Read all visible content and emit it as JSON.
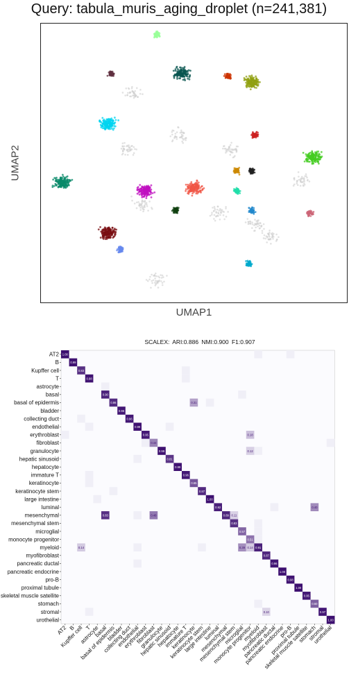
{
  "chart_data": [
    {
      "type": "scatter",
      "title": "Query: tabula_muris_aging_droplet (n=241,381)",
      "xlabel": "UMAP1",
      "ylabel": "UMAP2",
      "grid": false,
      "legend": "none",
      "clusters": [
        {
          "color": "#00d4f0",
          "x": 0.22,
          "y": 0.64
        },
        {
          "color": "#c010c0",
          "x": 0.34,
          "y": 0.4
        },
        {
          "color": "#f05545",
          "x": 0.5,
          "y": 0.41
        },
        {
          "color": "#7a0e12",
          "x": 0.22,
          "y": 0.25
        },
        {
          "color": "#0a5550",
          "x": 0.46,
          "y": 0.82
        },
        {
          "color": "#90a010",
          "x": 0.69,
          "y": 0.79
        },
        {
          "color": "#44cc22",
          "x": 0.89,
          "y": 0.52
        },
        {
          "color": "#0a8a6a",
          "x": 0.07,
          "y": 0.43
        },
        {
          "color": "#104010",
          "x": 0.44,
          "y": 0.33
        },
        {
          "color": "#2288cc",
          "x": 0.69,
          "y": 0.33
        },
        {
          "color": "#222222",
          "x": 0.69,
          "y": 0.47
        },
        {
          "color": "#cc8800",
          "x": 0.64,
          "y": 0.47
        },
        {
          "color": "#22ddaa",
          "x": 0.64,
          "y": 0.4
        },
        {
          "color": "#00aacc",
          "x": 0.68,
          "y": 0.14
        },
        {
          "color": "#9aff9a",
          "x": 0.38,
          "y": 0.96
        },
        {
          "color": "#603040",
          "x": 0.23,
          "y": 0.82
        },
        {
          "color": "#cc3300",
          "x": 0.61,
          "y": 0.81
        },
        {
          "color": "#cc6677",
          "x": 0.88,
          "y": 0.32
        },
        {
          "color": "#6688ee",
          "x": 0.26,
          "y": 0.19
        },
        {
          "color": "#cc2222",
          "x": 0.7,
          "y": 0.6
        }
      ]
    },
    {
      "type": "heatmap",
      "title": "SCALEX:  ARI:0.886  NMI:0.900  F1:0.907",
      "rows": [
        "AT2",
        "B",
        "Kupffer cell",
        "T",
        "astrocyte",
        "basal",
        "basal of epidermis",
        "bladder",
        "collecting duct",
        "endothelial",
        "erythroblast",
        "fibroblast",
        "granulocyte",
        "hepatic sinusoid",
        "hepatocyte",
        "immature T",
        "keratinocyte",
        "keratinocyte stem",
        "large intestine",
        "luminal",
        "mesenchymal",
        "mesenchymal stem",
        "microglial",
        "monocyte progenitor",
        "myeloid",
        "myofibroblast",
        "pancreatic ductal",
        "pancreatic endocrine",
        "pro-B",
        "proximal tubule",
        "skeletal muscle satellite",
        "stomach",
        "stromal",
        "urothelial"
      ],
      "columns": [
        "AT2",
        "B",
        "Kupffer cell",
        "T",
        "astrocyte",
        "basal",
        "basal of epidermis",
        "bladder",
        "collecting duct",
        "endothelial",
        "erythroblast",
        "fibroblast",
        "granulocyte",
        "hepatic sinusoid",
        "hepatocyte",
        "immature T",
        "keratinocyte",
        "keratinocyte stem",
        "large intestine",
        "luminal",
        "mesenchymal",
        "mesenchymal stem",
        "microglial",
        "monocyte progenitor",
        "myeloid",
        "myofibroblast",
        "pancreatic ductal",
        "pancreatic endocrine",
        "pro-B",
        "proximal tubule",
        "skeletal muscle satellite",
        "stomach",
        "stromal",
        "urothelial"
      ],
      "cells": [
        {
          "r": 0,
          "c": 0,
          "v": 1.0,
          "label": "1.00"
        },
        {
          "r": 1,
          "c": 1,
          "v": 0.99,
          "label": "0.99"
        },
        {
          "r": 2,
          "c": 2,
          "v": 0.83,
          "label": "0.83"
        },
        {
          "r": 3,
          "c": 3,
          "v": 0.98,
          "label": "0.98"
        },
        {
          "r": 5,
          "c": 5,
          "v": 0.9,
          "label": "0.90"
        },
        {
          "r": 6,
          "c": 6,
          "v": 0.86,
          "label": "0.86"
        },
        {
          "r": 6,
          "c": 16,
          "v": 0.31,
          "label": "0.31"
        },
        {
          "r": 7,
          "c": 7,
          "v": 0.96,
          "label": "0.96"
        },
        {
          "r": 8,
          "c": 8,
          "v": 0.96,
          "label": "0.96"
        },
        {
          "r": 9,
          "c": 9,
          "v": 0.99,
          "label": "0.99"
        },
        {
          "r": 10,
          "c": 10,
          "v": 0.95,
          "label": "0.95"
        },
        {
          "r": 10,
          "c": 23,
          "v": 0.18,
          "label": "0.18"
        },
        {
          "r": 11,
          "c": 11,
          "v": 0.44,
          "label": "0.44"
        },
        {
          "r": 12,
          "c": 12,
          "v": 0.99,
          "label": "0.99"
        },
        {
          "r": 12,
          "c": 23,
          "v": 0.12,
          "label": "0.12"
        },
        {
          "r": 13,
          "c": 13,
          "v": 0.81,
          "label": "0.81"
        },
        {
          "r": 14,
          "c": 14,
          "v": 0.99,
          "label": "0.99"
        },
        {
          "r": 15,
          "c": 15,
          "v": 0.96,
          "label": "0.96"
        },
        {
          "r": 16,
          "c": 16,
          "v": 0.65,
          "label": "0.65"
        },
        {
          "r": 17,
          "c": 17,
          "v": 0.87,
          "label": "0.87"
        },
        {
          "r": 18,
          "c": 18,
          "v": 1.0,
          "label": "1.00"
        },
        {
          "r": 19,
          "c": 19,
          "v": 0.92,
          "label": "0.92"
        },
        {
          "r": 19,
          "c": 31,
          "v": 0.4,
          "label": "0.40"
        },
        {
          "r": 20,
          "c": 5,
          "v": 0.83,
          "label": "0.83"
        },
        {
          "r": 20,
          "c": 11,
          "v": 0.48,
          "label": "0.48"
        },
        {
          "r": 20,
          "c": 20,
          "v": 0.89,
          "label": "0.89"
        },
        {
          "r": 20,
          "c": 21,
          "v": 0.11,
          "label": "0.11"
        },
        {
          "r": 21,
          "c": 21,
          "v": 0.83,
          "label": "0.83"
        },
        {
          "r": 22,
          "c": 22,
          "v": 0.57,
          "label": "0.57"
        },
        {
          "r": 23,
          "c": 23,
          "v": 0.51,
          "label": "0.51"
        },
        {
          "r": 24,
          "c": 2,
          "v": 0.14,
          "label": "0.14"
        },
        {
          "r": 24,
          "c": 22,
          "v": 0.39,
          "label": "0.39"
        },
        {
          "r": 24,
          "c": 23,
          "v": 0.14,
          "label": "0.14"
        },
        {
          "r": 24,
          "c": 24,
          "v": 0.91,
          "label": "0.91"
        },
        {
          "r": 25,
          "c": 25,
          "v": 0.87,
          "label": "0.87"
        },
        {
          "r": 26,
          "c": 26,
          "v": 0.96,
          "label": "0.96"
        },
        {
          "r": 27,
          "c": 27,
          "v": 1.0,
          "label": "1.00"
        },
        {
          "r": 28,
          "c": 28,
          "v": 0.98,
          "label": "0.98"
        },
        {
          "r": 29,
          "c": 29,
          "v": 1.0,
          "label": "1.00"
        },
        {
          "r": 30,
          "c": 30,
          "v": 0.95,
          "label": "0.95"
        },
        {
          "r": 31,
          "c": 31,
          "v": 0.6,
          "label": "0.60"
        },
        {
          "r": 32,
          "c": 25,
          "v": 0.1,
          "label": "0.10"
        },
        {
          "r": 32,
          "c": 32,
          "v": 0.97,
          "label": "0.97"
        },
        {
          "r": 33,
          "c": 33,
          "v": 1.0,
          "label": "1.00"
        }
      ],
      "faint": [
        {
          "r": 0,
          "c": 24
        },
        {
          "r": 0,
          "c": 28
        },
        {
          "r": 2,
          "c": 15
        },
        {
          "r": 3,
          "c": 15
        },
        {
          "r": 4,
          "c": 5
        },
        {
          "r": 5,
          "c": 22
        },
        {
          "r": 6,
          "c": 18
        },
        {
          "r": 8,
          "c": 2
        },
        {
          "r": 9,
          "c": 3
        },
        {
          "r": 9,
          "c": 13
        },
        {
          "r": 10,
          "c": 0
        },
        {
          "r": 11,
          "c": 10
        },
        {
          "r": 11,
          "c": 33
        },
        {
          "r": 12,
          "c": 24
        },
        {
          "r": 13,
          "c": 9
        },
        {
          "r": 15,
          "c": 3
        },
        {
          "r": 16,
          "c": 3
        },
        {
          "r": 17,
          "c": 6
        },
        {
          "r": 18,
          "c": 4
        },
        {
          "r": 19,
          "c": 26
        },
        {
          "r": 20,
          "c": 9
        },
        {
          "r": 21,
          "c": 24
        },
        {
          "r": 22,
          "c": 24
        },
        {
          "r": 23,
          "c": 24
        },
        {
          "r": 24,
          "c": 9
        },
        {
          "r": 24,
          "c": 17
        },
        {
          "r": 26,
          "c": 9
        },
        {
          "r": 31,
          "c": 24
        },
        {
          "r": 32,
          "c": 3
        }
      ],
      "colors": {
        "high": "#3d0f70",
        "low": "#f6f5fb",
        "text_dark": "#ffffff",
        "text_light": "#3d0f70"
      }
    }
  ]
}
